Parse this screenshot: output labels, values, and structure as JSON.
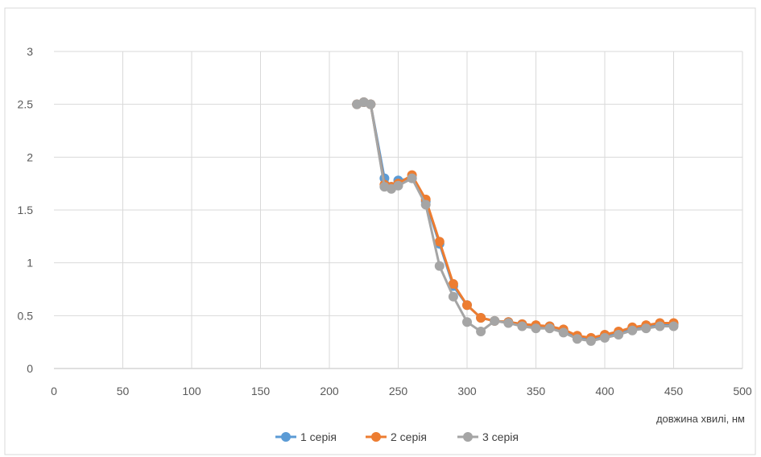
{
  "chart_data": {
    "type": "line",
    "title": "",
    "xlabel": "довжина хвилі, нм",
    "ylabel": "",
    "xlim": [
      0,
      500
    ],
    "ylim": [
      0,
      3
    ],
    "xticks": [
      0,
      50,
      100,
      150,
      200,
      250,
      300,
      350,
      400,
      450,
      500
    ],
    "yticks": [
      0,
      0.5,
      1,
      1.5,
      2,
      2.5,
      3
    ],
    "grid": true,
    "legend": "bottom",
    "x": [
      220,
      225,
      230,
      240,
      245,
      250,
      260,
      270,
      280,
      290,
      300,
      310,
      320,
      330,
      340,
      350,
      360,
      370,
      380,
      390,
      400,
      410,
      420,
      430,
      440,
      450
    ],
    "series": [
      {
        "name": "1 серія",
        "color": "#5b9bd5",
        "values": [
          2.5,
          2.52,
          2.5,
          1.8,
          1.72,
          1.78,
          1.8,
          1.58,
          1.18,
          0.78,
          0.6,
          0.48,
          0.45,
          0.44,
          0.42,
          0.4,
          0.4,
          0.36,
          0.3,
          0.28,
          0.31,
          0.34,
          0.38,
          0.4,
          0.42,
          0.42
        ]
      },
      {
        "name": "2 серія",
        "color": "#ed7d31",
        "values": [
          2.5,
          2.52,
          2.5,
          1.74,
          1.72,
          1.75,
          1.83,
          1.6,
          1.2,
          0.8,
          0.6,
          0.48,
          0.45,
          0.44,
          0.42,
          0.41,
          0.4,
          0.37,
          0.31,
          0.29,
          0.32,
          0.35,
          0.39,
          0.41,
          0.43,
          0.43
        ]
      },
      {
        "name": "3 серія",
        "color": "#a5a5a5",
        "values": [
          2.5,
          2.52,
          2.5,
          1.72,
          1.7,
          1.73,
          1.8,
          1.55,
          0.97,
          0.68,
          0.44,
          0.35,
          0.45,
          0.43,
          0.4,
          0.38,
          0.38,
          0.34,
          0.28,
          0.26,
          0.29,
          0.32,
          0.36,
          0.38,
          0.4,
          0.4
        ]
      }
    ]
  }
}
